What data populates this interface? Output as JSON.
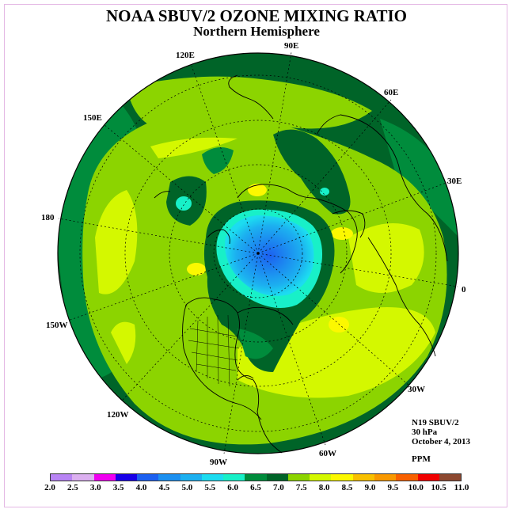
{
  "title": "NOAA SBUV/2 OZONE MIXING RATIO",
  "subtitle": "Northern Hemisphere",
  "longitude_labels": {
    "e120": "120E",
    "e90": "90E",
    "e60": "60E",
    "e150": "150E",
    "e30": "30E",
    "d180": "180",
    "d0": "0",
    "w150": "150W",
    "w30": "30W",
    "w120": "120W",
    "w60": "60W",
    "w90": "90W"
  },
  "info": {
    "satellite": "N19 SBUV/2",
    "level": "30 hPa",
    "date": "October 4, 2013",
    "units": "PPM"
  },
  "colorbar": {
    "ticks": [
      "2.0",
      "2.5",
      "3.0",
      "3.5",
      "4.0",
      "4.5",
      "5.0",
      "5.5",
      "6.0",
      "6.5",
      "7.0",
      "7.5",
      "8.0",
      "8.5",
      "9.0",
      "9.5",
      "10.0",
      "10.5",
      "11.0"
    ],
    "colors": [
      "#b884f4",
      "#dcb0f0",
      "#f000f0",
      "#1800e8",
      "#1c60f0",
      "#1c90f0",
      "#1cb0f0",
      "#1cdcf0",
      "#18f0c8",
      "#008c3c",
      "#006428",
      "#8cd400",
      "#d4f800",
      "#fcf800",
      "#f8c000",
      "#f89800",
      "#f86000",
      "#f00000",
      "#8c4830"
    ]
  }
}
